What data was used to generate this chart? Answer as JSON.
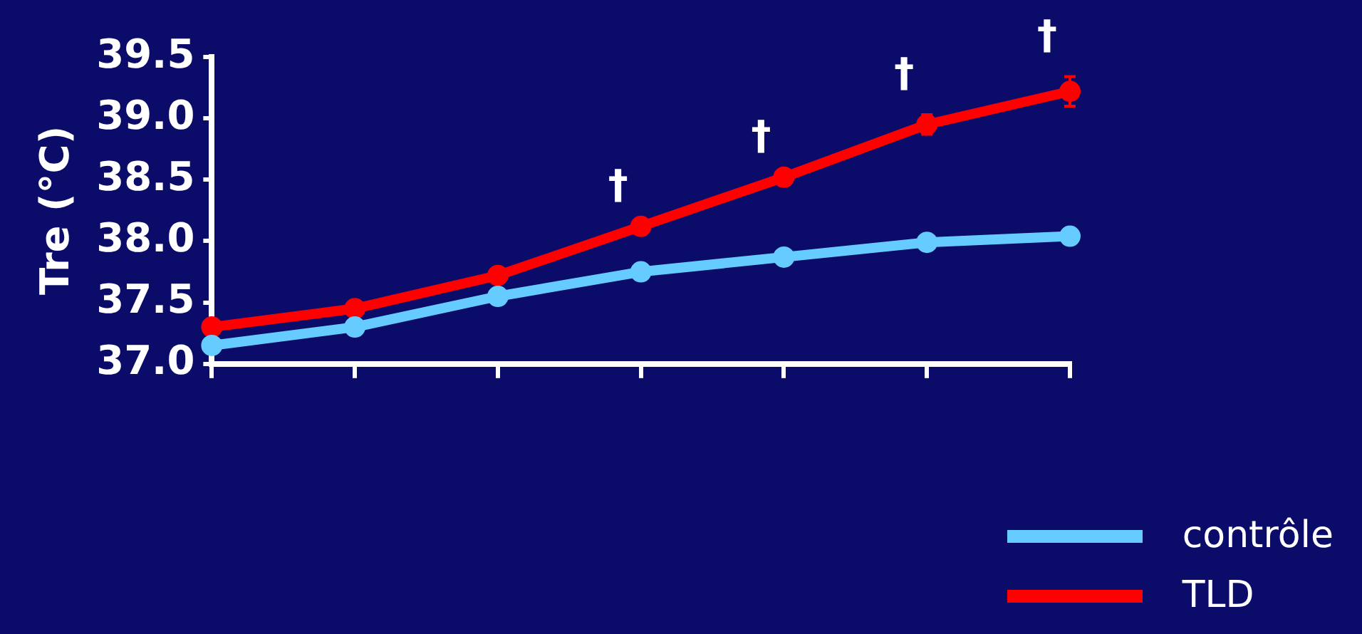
{
  "chart_data": {
    "type": "line",
    "ylabel": "Tre (°C)",
    "categories": [
      null,
      null,
      null,
      null,
      null,
      null,
      null
    ],
    "series": [
      {
        "name": "contrôle",
        "color": "#66ccff",
        "values": [
          37.15,
          37.3,
          37.55,
          37.75,
          37.87,
          37.99,
          38.04
        ]
      },
      {
        "name": "TLD",
        "color": "#ff0000",
        "values": [
          37.3,
          37.45,
          37.72,
          38.12,
          38.52,
          38.95,
          39.22
        ],
        "errors": [
          null,
          null,
          null,
          null,
          null,
          0.08,
          0.12
        ]
      }
    ],
    "ylim": [
      37.0,
      39.5
    ],
    "yticks": [
      {
        "value": 37,
        "label": "37.0"
      },
      37.5,
      {
        "value": 38,
        "label": "38.0"
      },
      38.5,
      {
        "value": 39,
        "label": "39.0"
      },
      39.5
    ],
    "annotations": [
      "†",
      "†",
      "†",
      "†"
    ],
    "grid": false,
    "legend": "bottom right",
    "marker": "circle",
    "line_style": "solid"
  }
}
